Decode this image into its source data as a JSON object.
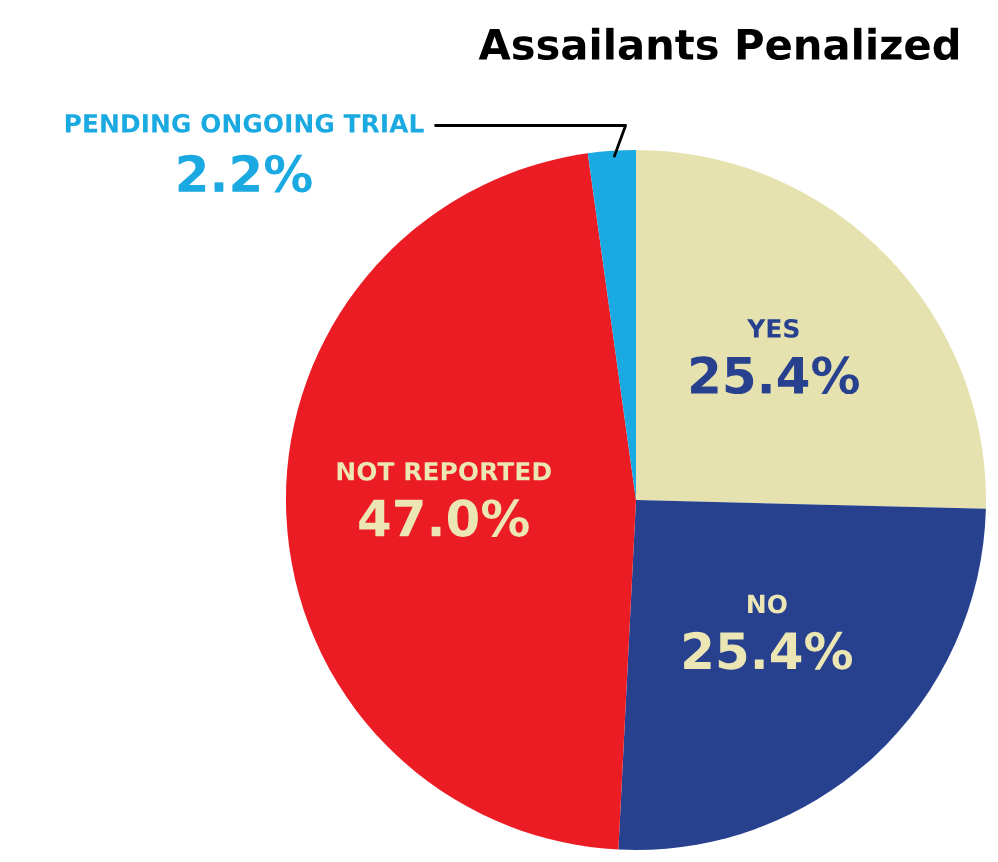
{
  "chart_data": {
    "type": "pie",
    "title": "Assailants Penalized",
    "categories": [
      "YES",
      "NO",
      "NOT REPORTED",
      "PENDING ONGOING TRIAL"
    ],
    "values": [
      25.4,
      25.4,
      47.0,
      2.2
    ],
    "colors": [
      "#e6e2b0",
      "#27418f",
      "#ec1c24",
      "#1aa9e1"
    ],
    "value_labels": [
      "25.4%",
      "25.4%",
      "47.0%",
      "2.2%"
    ]
  }
}
